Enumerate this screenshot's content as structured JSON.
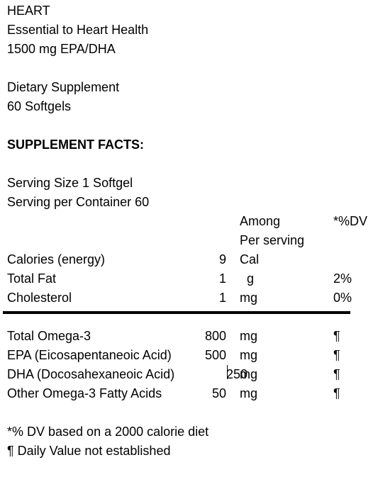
{
  "header": {
    "product": "HEART",
    "tagline": "Essential to Heart Health",
    "strength": "1500 mg EPA/DHA",
    "type": "Dietary Supplement",
    "count": "60 Softgels"
  },
  "facts_title": "SUPPLEMENT FACTS:",
  "serving": {
    "size": "Serving Size 1 Softgel",
    "per_container": "Serving per Container 60"
  },
  "columns": {
    "among": "Among",
    "per_serving": "Per serving",
    "dv": "*%DV"
  },
  "top_rows": [
    {
      "label": "Calories (energy)",
      "amount": "9",
      "unit": "Cal",
      "dv": ""
    },
    {
      "label": "Total Fat",
      "amount": "1",
      "unit": "g",
      "dv": "2%"
    },
    {
      "label": "Cholesterol",
      "amount": "1",
      "unit": "mg",
      "dv": "0%"
    }
  ],
  "bottom_rows": [
    {
      "label": "Total Omega-3",
      "amount": "800",
      "unit": "mg",
      "dv": "¶"
    },
    {
      "label": "EPA (Eicosapentaneoic Acid)",
      "amount": "500",
      "unit": "mg",
      "dv": "¶"
    },
    {
      "label": "DHA (Docosahexaneoic Acid)",
      "amount": "250",
      "unit": "mg",
      "dv": "¶"
    },
    {
      "label": "Other Omega-3 Fatty Acids",
      "amount": "50",
      "unit": "mg",
      "dv": "¶"
    }
  ],
  "footnotes": {
    "dv_basis": "*% DV based on a 2000 calorie diet",
    "not_established": "¶ Daily Value not established"
  }
}
